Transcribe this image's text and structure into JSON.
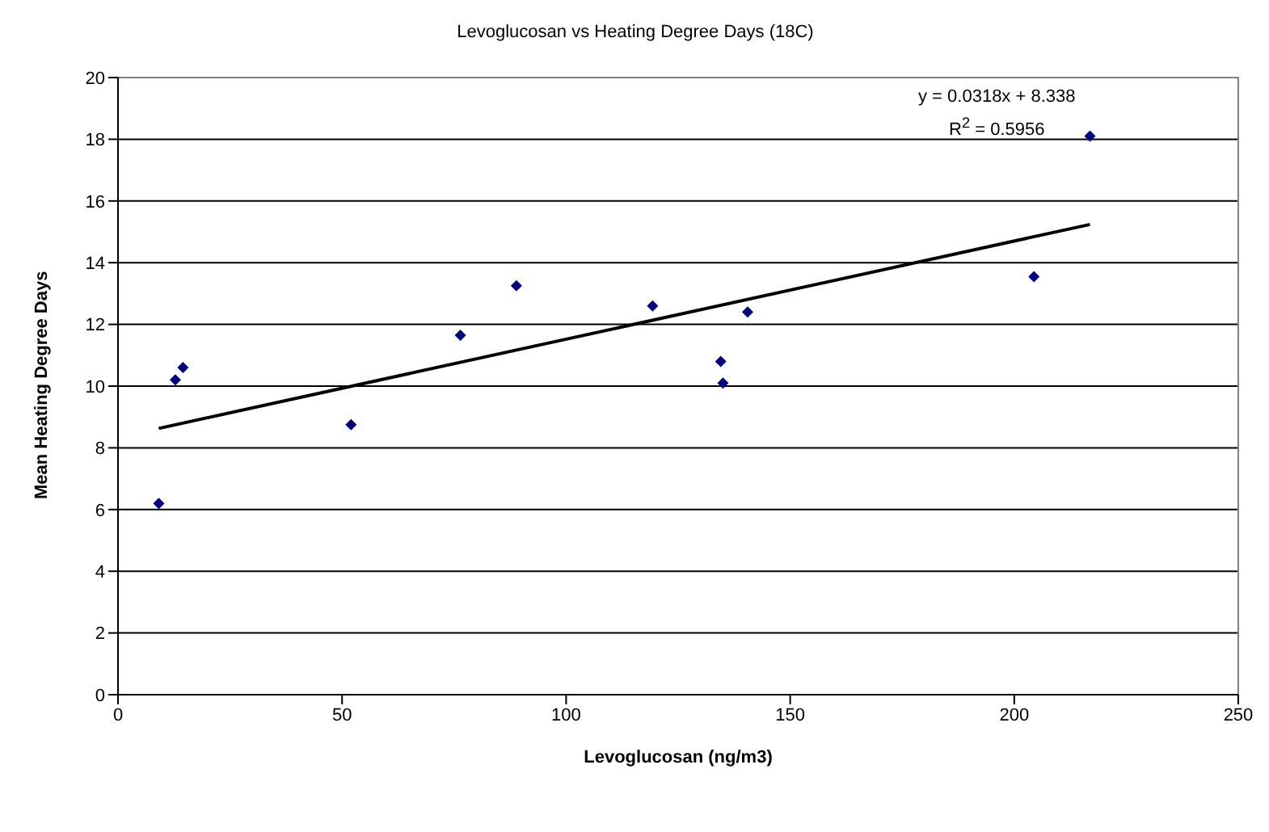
{
  "chart_data": {
    "type": "scatter",
    "title": "Levoglucosan vs Heating Degree Days (18C)",
    "xlabel": "Levoglucosan (ng/m3)",
    "ylabel": "Mean Heating Degree Days",
    "series": [
      {
        "color": "#000080",
        "marker": "diamond",
        "x": [
          9.1,
          12.8,
          14.5,
          52,
          76.4,
          88.9,
          119.3,
          134.5,
          135,
          140.5,
          204.4,
          216.9
        ],
        "values": [
          6.2,
          10.2,
          10.6,
          8.75,
          11.65,
          13.25,
          12.6,
          10.8,
          10.1,
          12.4,
          13.55,
          18.1
        ]
      },
      {
        "type": "line",
        "marker": "none",
        "color": "#000000",
        "x": [
          9.1,
          216.9
        ],
        "values": [
          8.63,
          15.24
        ]
      }
    ],
    "annotations": [
      "y = 0.0318x + 8.338",
      "R$^{2}$ = 0.5956"
    ],
    "xlim": [
      0,
      250
    ],
    "xticks": [
      0,
      50,
      100,
      150,
      200,
      250
    ],
    "ylim": [
      0,
      20
    ],
    "yticks": [
      0,
      2,
      4,
      6,
      8,
      10,
      12,
      14,
      16,
      18,
      20
    ],
    "grid": "y",
    "legend": false
  }
}
